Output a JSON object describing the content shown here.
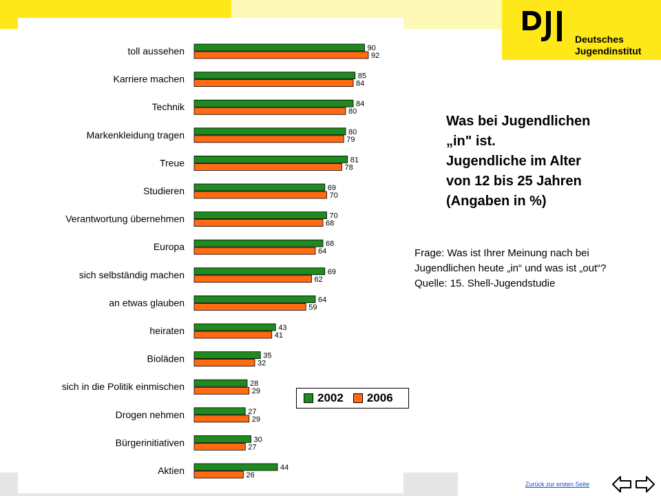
{
  "colors": {
    "series_2002": "#1f8a1f",
    "series_2006": "#ff6a13",
    "brand_yellow": "#ffe81a",
    "pale_yellow": "#fff9b8",
    "gray_stripe": "#e6e6e6",
    "link": "#1a4ec7"
  },
  "logo": {
    "mark": "DJI",
    "line1": "Deutsches",
    "line2": "Jugendinstitut"
  },
  "title": {
    "line1": "Was bei Jugendlichen",
    "line2": "„in\" ist.",
    "line3": "Jugendliche im Alter",
    "line4": "von 12 bis 25 Jahren",
    "line5": "(Angaben in %)"
  },
  "question": {
    "line1": "Frage: Was ist Ihrer Meinung nach bei",
    "line2": "Jugendlichen heute „in“ und was ist „out“?",
    "line3": "Quelle: 15. Shell-Jugendstudie"
  },
  "footer": {
    "back_link": "Zurück zur ersten Seite",
    "prev_icon": "arrow-left-icon",
    "next_icon": "arrow-right-icon"
  },
  "chart_data": {
    "type": "bar",
    "orientation": "horizontal",
    "categories": [
      "toll aussehen",
      "Karriere machen",
      "Technik",
      "Markenkleidung tragen",
      "Treue",
      "Studieren",
      "Verantwortung übernehmen",
      "Europa",
      "sich selbständig machen",
      "an etwas glauben",
      "heiraten",
      "Bioläden",
      "sich in die Politik einmischen",
      "Drogen nehmen",
      "Bürgerinitiativen",
      "Aktien"
    ],
    "series": [
      {
        "name": "2002",
        "values": [
          90,
          85,
          84,
          80,
          81,
          69,
          70,
          68,
          69,
          64,
          43,
          35,
          28,
          27,
          30,
          44
        ]
      },
      {
        "name": "2006",
        "values": [
          92,
          84,
          80,
          79,
          78,
          70,
          68,
          64,
          62,
          59,
          41,
          32,
          29,
          29,
          27,
          26
        ]
      }
    ],
    "xlim": [
      0,
      100
    ],
    "grid": false,
    "legend_position": "bottom-right"
  }
}
